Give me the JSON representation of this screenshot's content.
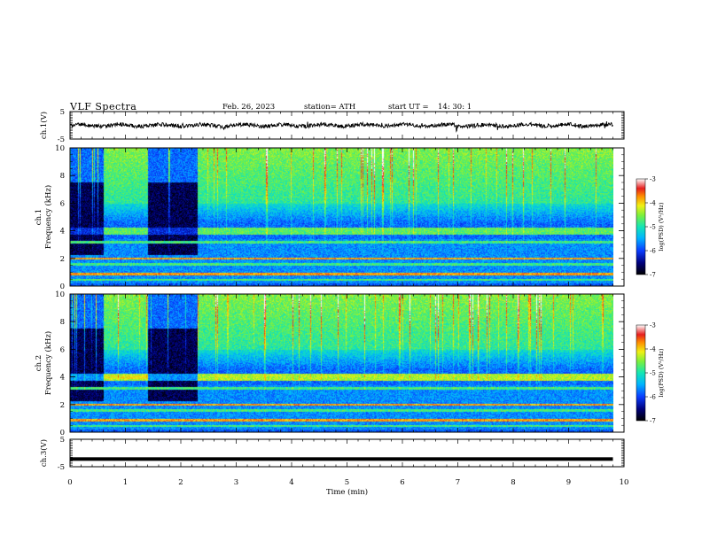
{
  "header": {
    "title": "VLF  Spectra",
    "date": "Feb. 26, 2023",
    "station": "station= ATH",
    "start_label": "start  UT  =",
    "start_time": "14: 30: 1"
  },
  "chart_data": [
    {
      "type": "line",
      "panel": "ch1-waveform",
      "ylabel": "ch.1(V)",
      "ylim": [
        -5,
        5
      ],
      "yticks": [
        "5",
        "-5"
      ],
      "x_range_min": [
        0,
        9.8
      ],
      "description_level": "noisy trace around 0 V"
    },
    {
      "type": "heatmap",
      "panel": "ch1-spectrogram",
      "ylabel_line1": "ch.1",
      "ylabel_line2": "Frequency  (kHz)",
      "ylim": [
        0,
        10
      ],
      "yticks": [
        "0",
        "2",
        "4",
        "6",
        "8",
        "10"
      ],
      "x_range_min": [
        0,
        9.8
      ],
      "colorbar": {
        "label": "log(PSD) (V²/Hz)",
        "ticks": [
          "-3",
          "-4",
          "-5",
          "-6",
          "-7"
        ],
        "range": [
          -7,
          -3
        ]
      },
      "features": {
        "dark_blocks_min": [
          [
            0,
            0.6
          ],
          [
            1.4,
            2.3
          ]
        ],
        "band_khz": 4.0,
        "low_bands_khz": [
          0.5,
          0.9,
          1.6,
          2.0,
          3.2
        ]
      }
    },
    {
      "type": "heatmap",
      "panel": "ch2-spectrogram",
      "ylabel_line1": "ch.2",
      "ylabel_line2": "Frequency  (kHz)",
      "ylim": [
        0,
        10
      ],
      "yticks": [
        "0",
        "2",
        "4",
        "6",
        "8",
        "10"
      ],
      "x_range_min": [
        0,
        9.8
      ],
      "colorbar": {
        "label": "log(PSD) (V²/Hz)",
        "ticks": [
          "-3",
          "-4",
          "-5",
          "-6",
          "-7"
        ],
        "range": [
          -7,
          -3
        ]
      },
      "features": {
        "dark_blocks_min": [
          [
            0,
            0.6
          ],
          [
            1.4,
            2.3
          ]
        ],
        "band_khz": 4.0,
        "low_bands_khz": [
          0.5,
          0.9,
          1.6,
          2.0,
          3.2
        ]
      }
    },
    {
      "type": "line",
      "panel": "ch3-waveform",
      "ylabel": "ch.3(V)",
      "ylim": [
        -5,
        5
      ],
      "yticks": [
        "5",
        "-5"
      ],
      "level_v": -2.2,
      "x_range_min": [
        0,
        9.8
      ]
    }
  ],
  "xaxis": {
    "label": "Time  (min)",
    "xlim": [
      0,
      10
    ],
    "ticks": [
      "0",
      "1",
      "2",
      "3",
      "4",
      "5",
      "6",
      "7",
      "8",
      "9",
      "10"
    ]
  }
}
